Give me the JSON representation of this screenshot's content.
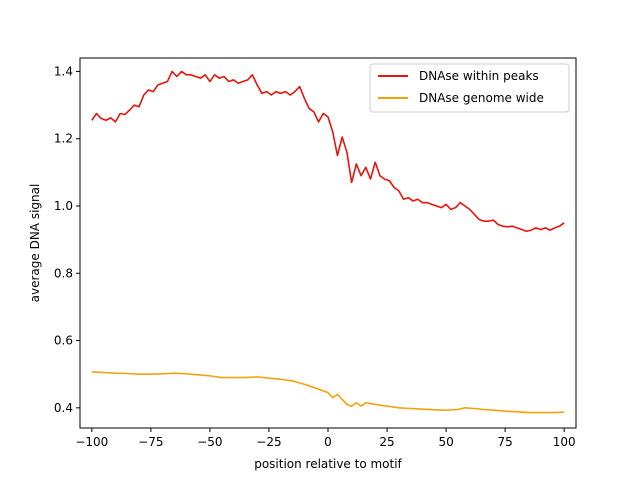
{
  "chart_data": {
    "type": "line",
    "title": "",
    "xlabel": "position relative to motif",
    "ylabel": "average DNA signal",
    "xlim": [
      -105,
      105
    ],
    "ylim": [
      0.34,
      1.44
    ],
    "xticks": [
      -100,
      -75,
      -50,
      -25,
      0,
      25,
      50,
      75,
      100
    ],
    "xtick_labels": [
      "−100",
      "−75",
      "−50",
      "−25",
      "0",
      "25",
      "50",
      "75",
      "100"
    ],
    "yticks": [
      0.4,
      0.6,
      0.8,
      1.0,
      1.2,
      1.4
    ],
    "ytick_labels": [
      "0.4",
      "0.6",
      "0.8",
      "1.0",
      "1.2",
      "1.4"
    ],
    "grid": false,
    "legend_position": "top-right",
    "series": [
      {
        "name": "DNAse within peaks",
        "color": "#e8140c",
        "points": [
          [
            -100,
            1.255
          ],
          [
            -98,
            1.275
          ],
          [
            -96,
            1.26
          ],
          [
            -94,
            1.255
          ],
          [
            -92,
            1.262
          ],
          [
            -90,
            1.25
          ],
          [
            -88,
            1.275
          ],
          [
            -86,
            1.272
          ],
          [
            -84,
            1.285
          ],
          [
            -82,
            1.3
          ],
          [
            -80,
            1.295
          ],
          [
            -78,
            1.33
          ],
          [
            -76,
            1.345
          ],
          [
            -74,
            1.34
          ],
          [
            -72,
            1.36
          ],
          [
            -70,
            1.365
          ],
          [
            -68,
            1.37
          ],
          [
            -66,
            1.4
          ],
          [
            -64,
            1.385
          ],
          [
            -62,
            1.4
          ],
          [
            -60,
            1.39
          ],
          [
            -58,
            1.39
          ],
          [
            -56,
            1.385
          ],
          [
            -54,
            1.38
          ],
          [
            -52,
            1.39
          ],
          [
            -50,
            1.37
          ],
          [
            -48,
            1.39
          ],
          [
            -46,
            1.38
          ],
          [
            -44,
            1.385
          ],
          [
            -42,
            1.37
          ],
          [
            -40,
            1.375
          ],
          [
            -38,
            1.365
          ],
          [
            -36,
            1.37
          ],
          [
            -34,
            1.375
          ],
          [
            -32,
            1.39
          ],
          [
            -30,
            1.36
          ],
          [
            -28,
            1.335
          ],
          [
            -26,
            1.34
          ],
          [
            -24,
            1.33
          ],
          [
            -22,
            1.34
          ],
          [
            -20,
            1.335
          ],
          [
            -18,
            1.34
          ],
          [
            -16,
            1.33
          ],
          [
            -14,
            1.34
          ],
          [
            -12,
            1.355
          ],
          [
            -10,
            1.32
          ],
          [
            -8,
            1.29
          ],
          [
            -6,
            1.28
          ],
          [
            -4,
            1.25
          ],
          [
            -2,
            1.275
          ],
          [
            0,
            1.265
          ],
          [
            2,
            1.22
          ],
          [
            4,
            1.15
          ],
          [
            6,
            1.205
          ],
          [
            8,
            1.16
          ],
          [
            10,
            1.07
          ],
          [
            12,
            1.125
          ],
          [
            14,
            1.09
          ],
          [
            16,
            1.115
          ],
          [
            18,
            1.08
          ],
          [
            20,
            1.13
          ],
          [
            22,
            1.09
          ],
          [
            24,
            1.08
          ],
          [
            26,
            1.075
          ],
          [
            28,
            1.055
          ],
          [
            30,
            1.045
          ],
          [
            32,
            1.02
          ],
          [
            34,
            1.025
          ],
          [
            36,
            1.015
          ],
          [
            38,
            1.02
          ],
          [
            40,
            1.01
          ],
          [
            42,
            1.01
          ],
          [
            44,
            1.005
          ],
          [
            46,
            1.0
          ],
          [
            48,
            0.995
          ],
          [
            50,
            1.005
          ],
          [
            52,
            0.99
          ],
          [
            54,
            0.995
          ],
          [
            56,
            1.01
          ],
          [
            58,
            1.0
          ],
          [
            60,
            0.99
          ],
          [
            62,
            0.975
          ],
          [
            64,
            0.96
          ],
          [
            66,
            0.955
          ],
          [
            68,
            0.955
          ],
          [
            70,
            0.958
          ],
          [
            72,
            0.945
          ],
          [
            74,
            0.94
          ],
          [
            76,
            0.938
          ],
          [
            78,
            0.94
          ],
          [
            80,
            0.935
          ],
          [
            82,
            0.93
          ],
          [
            84,
            0.925
          ],
          [
            86,
            0.928
          ],
          [
            88,
            0.935
          ],
          [
            90,
            0.93
          ],
          [
            92,
            0.935
          ],
          [
            94,
            0.928
          ],
          [
            96,
            0.935
          ],
          [
            98,
            0.94
          ],
          [
            100,
            0.95
          ]
        ]
      },
      {
        "name": "DNAse genome wide",
        "color": "#f5a20a",
        "points": [
          [
            -100,
            0.507
          ],
          [
            -95,
            0.505
          ],
          [
            -90,
            0.503
          ],
          [
            -85,
            0.502
          ],
          [
            -80,
            0.5
          ],
          [
            -75,
            0.5
          ],
          [
            -70,
            0.501
          ],
          [
            -65,
            0.503
          ],
          [
            -60,
            0.501
          ],
          [
            -55,
            0.498
          ],
          [
            -50,
            0.495
          ],
          [
            -45,
            0.49
          ],
          [
            -40,
            0.49
          ],
          [
            -35,
            0.49
          ],
          [
            -30,
            0.492
          ],
          [
            -25,
            0.488
          ],
          [
            -20,
            0.485
          ],
          [
            -15,
            0.48
          ],
          [
            -10,
            0.47
          ],
          [
            -5,
            0.458
          ],
          [
            0,
            0.445
          ],
          [
            2,
            0.43
          ],
          [
            4,
            0.44
          ],
          [
            6,
            0.425
          ],
          [
            8,
            0.41
          ],
          [
            10,
            0.405
          ],
          [
            12,
            0.415
          ],
          [
            14,
            0.405
          ],
          [
            16,
            0.415
          ],
          [
            20,
            0.41
          ],
          [
            25,
            0.405
          ],
          [
            30,
            0.4
          ],
          [
            35,
            0.398
          ],
          [
            40,
            0.396
          ],
          [
            45,
            0.394
          ],
          [
            50,
            0.393
          ],
          [
            55,
            0.395
          ],
          [
            58,
            0.4
          ],
          [
            62,
            0.398
          ],
          [
            66,
            0.395
          ],
          [
            70,
            0.393
          ],
          [
            75,
            0.39
          ],
          [
            80,
            0.388
          ],
          [
            85,
            0.386
          ],
          [
            90,
            0.386
          ],
          [
            95,
            0.386
          ],
          [
            100,
            0.387
          ]
        ]
      }
    ]
  }
}
